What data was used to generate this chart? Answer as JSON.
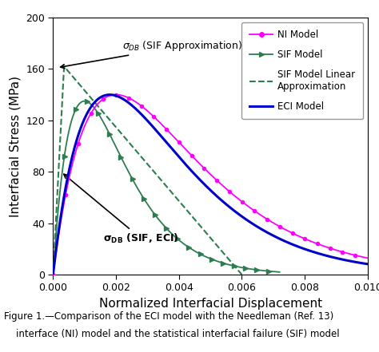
{
  "xlim": [
    0.0,
    0.01
  ],
  "ylim": [
    0,
    200
  ],
  "xlabel": "Normalized Interfacial Displacement",
  "ylabel": "Interfacial Stress (MPa)",
  "yticks": [
    0,
    40,
    80,
    120,
    160,
    200
  ],
  "xtick_vals": [
    0.0,
    0.002,
    0.004,
    0.006,
    0.008,
    0.01
  ],
  "xtick_labels": [
    "0.000",
    "0.002",
    "0.004",
    "0.006",
    "0.008",
    "0.010"
  ],
  "ni_color": "#FF00FF",
  "sif_color": "#2E7D50",
  "sif_approx_color": "#2E7D50",
  "eci_color": "#0000CC",
  "caption_line1": "Figure 1.—Comparison of the ECI model with the Needleman (Ref. 13)",
  "caption_line2": "    interface (NI) model and the statistical interfacial failure (SIF) model",
  "legend_labels": [
    "NI Model",
    "SIF Model",
    "SIF Model Linear\nApproximation",
    "ECI Model"
  ],
  "figsize": [
    4.74,
    4.41
  ],
  "dpi": 100
}
